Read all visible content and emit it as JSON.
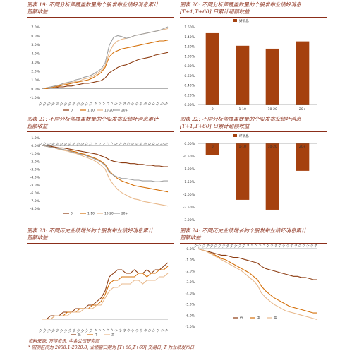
{
  "colors": {
    "dark": "#8B3A0F",
    "mid": "#D4700A",
    "light": "#E8B98C",
    "gray": "#A0A0A0",
    "title": "#8B2E1A"
  },
  "panels": [
    {
      "id": "c19",
      "title_lines": [
        "图表 19:  不同分析师覆盖数量的个股发布业绩好消息累计",
        "超额收益"
      ]
    },
    {
      "id": "c20",
      "title_lines": [
        "图表 20:  不同分析师覆盖数量的个股发布业绩好消息",
        "[T+1,T+60] 日累计超额收益"
      ]
    },
    {
      "id": "c21",
      "title_lines": [
        "图表 21:  不同分析师覆盖数量的个股发布业绩坏消息累计",
        "超额收益"
      ]
    },
    {
      "id": "c22",
      "title_lines": [
        "图表 22:  不同分析师覆盖数量的个股发布业绩坏消息",
        "[T+1,T+60] 日累计超额收益"
      ]
    },
    {
      "id": "c23",
      "title_lines": [
        "图表 23:  不同历史业绩增长的个股发布业绩好消息累计",
        "超额收益"
      ]
    },
    {
      "id": "c24",
      "title_lines": [
        "图表 24:  不同历史业绩增长的个股发布业绩坏消息累计",
        "超额收益"
      ]
    }
  ],
  "footer": {
    "source": "资料来源: 万得资讯, 中金公司研究部",
    "note": "* 回测区间为 2008.1-2020.8, 业绩窗口期为 [T+60,T+60] 交易日, T 为业绩发布日"
  },
  "chart_data": [
    {
      "id": "c19",
      "type": "line",
      "ylim": [
        -0.01,
        0.07
      ],
      "yticks": [
        "7.0%",
        "6.0%",
        "5.0%",
        "4.0%",
        "3.0%",
        "2.0%",
        "1.0%",
        "0.0%",
        "-1.0%"
      ],
      "xticks": [
        "-61",
        "-57",
        "-53",
        "-49",
        "-45",
        "-41",
        "-37",
        "-33",
        "-29",
        "-25",
        "-21",
        "-17",
        "-13",
        "-9",
        "-5",
        "-1",
        "3",
        "7",
        "11",
        "15",
        "19",
        "23",
        "27",
        "31",
        "35",
        "39",
        "43",
        "47",
        "51",
        "55",
        "59"
      ],
      "series": [
        {
          "name": "0",
          "color": "dark",
          "values": [
            0,
            0.0,
            0.001,
            0.001,
            0.002,
            0.002,
            0.003,
            0.003,
            0.004,
            0.005,
            0.006,
            0.006,
            0.007,
            0.008,
            0.009,
            0.012,
            0.018,
            0.021,
            0.024,
            0.026,
            0.027,
            0.029,
            0.031,
            0.033,
            0.034,
            0.035,
            0.036,
            0.038,
            0.039,
            0.04,
            0.041
          ]
        },
        {
          "name": "1-10",
          "color": "mid",
          "values": [
            0,
            0.0,
            0.001,
            0.002,
            0.003,
            0.004,
            0.005,
            0.006,
            0.007,
            0.008,
            0.009,
            0.01,
            0.012,
            0.015,
            0.018,
            0.024,
            0.036,
            0.041,
            0.043,
            0.045,
            0.046,
            0.047,
            0.048,
            0.049,
            0.05,
            0.051,
            0.052,
            0.053,
            0.054,
            0.054,
            0.055
          ]
        },
        {
          "name": "10-20",
          "color": "light",
          "values": [
            0,
            0.001,
            0.002,
            0.003,
            0.004,
            0.005,
            0.006,
            0.007,
            0.008,
            0.009,
            0.011,
            0.012,
            0.014,
            0.017,
            0.02,
            0.026,
            0.041,
            0.05,
            0.054,
            0.056,
            0.057,
            0.058,
            0.06,
            0.061,
            0.062,
            0.063,
            0.064,
            0.065,
            0.066,
            0.067,
            0.068
          ]
        },
        {
          "name": "20+",
          "color": "gray",
          "values": [
            0,
            0.001,
            0.002,
            0.003,
            0.004,
            0.006,
            0.007,
            0.008,
            0.01,
            0.011,
            0.013,
            0.014,
            0.016,
            0.019,
            0.022,
            0.029,
            0.049,
            0.058,
            0.06,
            0.059,
            0.057,
            0.058,
            0.06,
            0.061,
            0.062,
            0.063,
            0.064,
            0.065,
            0.066,
            0.068,
            0.07
          ]
        }
      ]
    },
    {
      "id": "c20",
      "type": "bar",
      "ylim": [
        0,
        0.016
      ],
      "yticks": [
        "1.60%",
        "1.40%",
        "1.20%",
        "1.00%",
        "0.80%",
        "0.60%",
        "0.40%",
        "0.20%",
        "0.00%"
      ],
      "categories": [
        "0",
        "1-10",
        "10-20",
        "20+"
      ],
      "values": [
        0.0147,
        0.0121,
        0.0115,
        0.013
      ],
      "legend": [
        "好消息"
      ]
    },
    {
      "id": "c21",
      "type": "line",
      "ylim": [
        -0.08,
        0.01
      ],
      "yticks": [
        "1.0%",
        "0.0%",
        "-1.0%",
        "-2.0%",
        "-3.0%",
        "-4.0%",
        "-5.0%",
        "-6.0%",
        "-7.0%",
        "-8.0%"
      ],
      "xticks": [
        "-61",
        "-57",
        "-53",
        "-49",
        "-45",
        "-41",
        "-37",
        "-33",
        "-29",
        "-25",
        "-21",
        "-17",
        "-13",
        "-9",
        "-5",
        "-1",
        "3",
        "7",
        "11",
        "15",
        "19",
        "23",
        "27",
        "31",
        "35",
        "39",
        "43",
        "47",
        "51",
        "55",
        "59"
      ],
      "series": [
        {
          "name": "0",
          "color": "dark",
          "values": [
            0,
            -0.001,
            -0.001,
            -0.002,
            -0.003,
            -0.003,
            -0.004,
            -0.005,
            -0.006,
            -0.007,
            -0.008,
            -0.009,
            -0.01,
            -0.011,
            -0.013,
            -0.015,
            -0.018,
            -0.02,
            -0.021,
            -0.022,
            -0.022,
            -0.023,
            -0.023,
            -0.024,
            -0.024,
            -0.025,
            -0.025,
            -0.026,
            -0.026,
            -0.027,
            -0.027
          ]
        },
        {
          "name": "1-10",
          "color": "mid",
          "values": [
            0,
            -0.001,
            -0.002,
            -0.003,
            -0.004,
            -0.005,
            -0.006,
            -0.007,
            -0.008,
            -0.01,
            -0.011,
            -0.013,
            -0.015,
            -0.017,
            -0.02,
            -0.024,
            -0.032,
            -0.038,
            -0.042,
            -0.045,
            -0.047,
            -0.049,
            -0.051,
            -0.052,
            -0.053,
            -0.054,
            -0.055,
            -0.056,
            -0.057,
            -0.058,
            -0.059
          ]
        },
        {
          "name": "10-20",
          "color": "light",
          "values": [
            0,
            -0.001,
            -0.002,
            -0.003,
            -0.005,
            -0.006,
            -0.007,
            -0.009,
            -0.01,
            -0.012,
            -0.014,
            -0.016,
            -0.018,
            -0.021,
            -0.025,
            -0.03,
            -0.042,
            -0.05,
            -0.056,
            -0.06,
            -0.063,
            -0.066,
            -0.068,
            -0.069,
            -0.071,
            -0.072,
            -0.073,
            -0.074,
            -0.075,
            -0.076,
            -0.077
          ]
        },
        {
          "name": "20+",
          "color": "gray",
          "values": [
            0,
            -0.001,
            -0.002,
            -0.003,
            -0.004,
            -0.005,
            -0.006,
            -0.008,
            -0.009,
            -0.011,
            -0.012,
            -0.014,
            -0.016,
            -0.018,
            -0.021,
            -0.025,
            -0.034,
            -0.038,
            -0.04,
            -0.042,
            -0.042,
            -0.043,
            -0.044,
            -0.044,
            -0.045,
            -0.045,
            -0.045,
            -0.046,
            -0.046,
            -0.045,
            -0.045
          ]
        }
      ]
    },
    {
      "id": "c22",
      "type": "bar",
      "ylim": [
        -0.03,
        0.0
      ],
      "yticks": [
        "0.00%",
        "-0.50%",
        "-1.00%",
        "-1.50%",
        "-2.00%",
        "-2.50%",
        "-3.00%"
      ],
      "categories": [
        "0",
        "1-10",
        "10-20",
        "20+"
      ],
      "values": [
        -0.0047,
        -0.0222,
        -0.0261,
        -0.0108
      ],
      "legend": [
        "坏消息"
      ]
    },
    {
      "id": "c23",
      "type": "line",
      "ylim": [
        -0.002,
        0.02
      ],
      "xticks": [
        "-61",
        "-57",
        "-53",
        "-49",
        "-45",
        "-41",
        "-37",
        "-33",
        "-29",
        "-25",
        "-21",
        "-17",
        "-13",
        "-9",
        "-5",
        "-1",
        "3",
        "7",
        "11",
        "15",
        "19",
        "23",
        "27",
        "31",
        "35",
        "39",
        "43",
        "47",
        "51",
        "55",
        "59"
      ],
      "series": [
        {
          "name": "低",
          "color": "dark",
          "values": [
            0,
            0.0,
            0.001,
            0.001,
            0.001,
            0.002,
            0.002,
            0.002,
            0.003,
            0.003,
            0.003,
            0.004,
            0.004,
            0.005,
            0.006,
            0.008,
            0.012,
            0.013,
            0.014,
            0.014,
            0.013,
            0.013,
            0.014,
            0.013,
            0.013,
            0.014,
            0.013,
            0.014,
            0.014,
            0.015,
            0.016
          ]
        },
        {
          "name": "中",
          "color": "mid",
          "values": [
            0,
            0.0,
            0.0,
            0.001,
            0.001,
            0.001,
            0.002,
            0.002,
            0.002,
            0.003,
            0.003,
            0.003,
            0.004,
            0.004,
            0.005,
            0.007,
            0.01,
            0.011,
            0.011,
            0.012,
            0.012,
            0.012,
            0.012,
            0.013,
            0.013,
            0.012,
            0.013,
            0.013,
            0.014,
            0.014,
            0.015
          ]
        },
        {
          "name": "高",
          "color": "light",
          "values": [
            0,
            0.0,
            0.0,
            0.001,
            0.001,
            0.001,
            0.001,
            0.002,
            0.002,
            0.002,
            0.003,
            0.003,
            0.003,
            0.004,
            0.004,
            0.006,
            0.008,
            0.009,
            0.009,
            0.01,
            0.01,
            0.01,
            0.011,
            0.011,
            0.01,
            0.011,
            0.011,
            0.011,
            0.012,
            0.012,
            0.013
          ]
        }
      ]
    },
    {
      "id": "c24",
      "type": "line",
      "ylim": [
        -0.07,
        0.0
      ],
      "yticks": [
        "0.0%",
        "-1.0%",
        "-2.0%",
        "-3.0%",
        "-4.0%",
        "-5.0%",
        "-6.0%",
        "-7.0%"
      ],
      "xticks": [
        "-61",
        "-57",
        "-53",
        "-49",
        "-45",
        "-41",
        "-37",
        "-33",
        "-29",
        "-25",
        "-21",
        "-17",
        "-13",
        "-9",
        "-5",
        "-1",
        "3",
        "7",
        "11",
        "15",
        "19",
        "23",
        "27",
        "31",
        "35",
        "39",
        "43",
        "47",
        "51",
        "55",
        "59"
      ],
      "series": [
        {
          "name": "低",
          "color": "dark",
          "values": [
            0,
            -0.001,
            -0.002,
            -0.003,
            -0.004,
            -0.005,
            -0.006,
            -0.006,
            -0.007,
            -0.008,
            -0.008,
            -0.009,
            -0.01,
            -0.011,
            -0.012,
            -0.013,
            -0.016,
            -0.018,
            -0.019,
            -0.02,
            -0.021,
            -0.022,
            -0.023,
            -0.024,
            -0.025,
            -0.025,
            -0.026,
            -0.026,
            -0.027,
            -0.028,
            -0.028
          ]
        },
        {
          "name": "中",
          "color": "mid",
          "values": [
            0,
            -0.001,
            -0.002,
            -0.004,
            -0.005,
            -0.007,
            -0.009,
            -0.01,
            -0.012,
            -0.014,
            -0.016,
            -0.018,
            -0.02,
            -0.022,
            -0.025,
            -0.028,
            -0.034,
            -0.038,
            -0.041,
            -0.044,
            -0.046,
            -0.048,
            -0.05,
            -0.052,
            -0.053,
            -0.054,
            -0.055,
            -0.056,
            -0.057,
            -0.058,
            -0.058
          ]
        },
        {
          "name": "高",
          "color": "light",
          "values": [
            0,
            -0.001,
            -0.002,
            -0.004,
            -0.006,
            -0.008,
            -0.01,
            -0.012,
            -0.014,
            -0.016,
            -0.018,
            -0.02,
            -0.023,
            -0.026,
            -0.029,
            -0.033,
            -0.04,
            -0.044,
            -0.047,
            -0.05,
            -0.052,
            -0.054,
            -0.056,
            -0.057,
            -0.058,
            -0.059,
            -0.06,
            -0.061,
            -0.062,
            -0.063,
            -0.064
          ]
        }
      ]
    }
  ]
}
